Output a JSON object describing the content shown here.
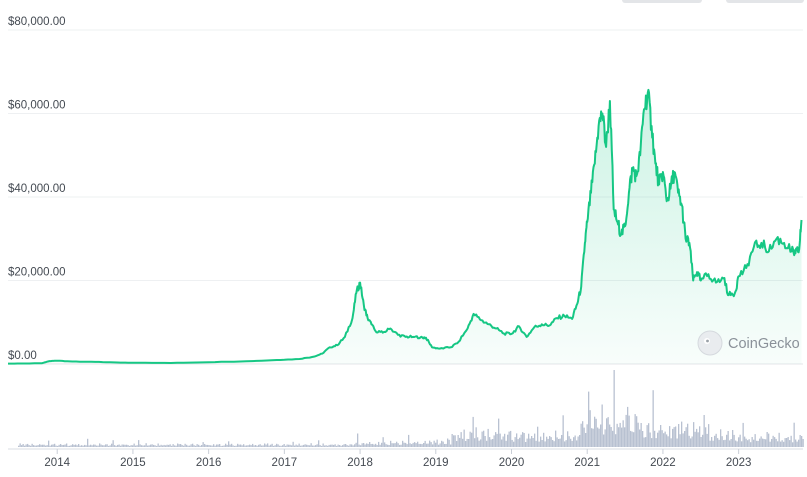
{
  "chart_data": {
    "type": "area",
    "y_tick_labels": [
      "$0.00",
      "$20,000.00",
      "$40,000.00",
      "$60,000.00",
      "$80,000.00"
    ],
    "y_ticks": [
      0,
      20000,
      40000,
      60000,
      80000
    ],
    "ylim": [
      0,
      80000
    ],
    "x_tick_labels": [
      "2014",
      "2015",
      "2016",
      "2017",
      "2018",
      "2019",
      "2020",
      "2021",
      "2022",
      "2023"
    ],
    "x_ticks": [
      2014,
      2015,
      2016,
      2017,
      2018,
      2019,
      2020,
      2021,
      2022,
      2023
    ],
    "xlim": [
      2013.35,
      2023.85
    ],
    "grid": true,
    "line_color": "#16c784",
    "volume_color": "#b8c1d1",
    "series": [
      {
        "values_type": "price",
        "x": [
          2013.35,
          2013.6,
          2013.8,
          2013.9,
          2014.0,
          2014.2,
          2014.5,
          2014.8,
          2015.0,
          2015.5,
          2016.0,
          2016.5,
          2016.9,
          2017.2,
          2017.4,
          2017.5,
          2017.6,
          2017.7,
          2017.8,
          2017.9,
          2017.95,
          2018.0,
          2018.05,
          2018.1,
          2018.15,
          2018.2,
          2018.3,
          2018.4,
          2018.5,
          2018.6,
          2018.7,
          2018.8,
          2018.87,
          2018.95,
          2019.05,
          2019.2,
          2019.3,
          2019.42,
          2019.5,
          2019.6,
          2019.7,
          2019.8,
          2019.9,
          2020.0,
          2020.1,
          2020.2,
          2020.3,
          2020.4,
          2020.5,
          2020.6,
          2020.7,
          2020.8,
          2020.87,
          2020.92,
          2020.97,
          2021.0,
          2021.05,
          2021.1,
          2021.15,
          2021.2,
          2021.25,
          2021.3,
          2021.35,
          2021.4,
          2021.45,
          2021.5,
          2021.55,
          2021.6,
          2021.65,
          2021.7,
          2021.75,
          2021.8,
          2021.85,
          2021.9,
          2021.95,
          2022.0,
          2022.05,
          2022.1,
          2022.15,
          2022.2,
          2022.25,
          2022.3,
          2022.35,
          2022.4,
          2022.45,
          2022.5,
          2022.6,
          2022.7,
          2022.8,
          2022.87,
          2022.95,
          2023.0,
          2023.1,
          2023.2,
          2023.3,
          2023.4,
          2023.5,
          2023.6,
          2023.7,
          2023.75,
          2023.8,
          2023.83
        ],
        "values": [
          100,
          120,
          200,
          700,
          800,
          600,
          500,
          350,
          300,
          250,
          430,
          650,
          950,
          1200,
          1800,
          2500,
          4000,
          4500,
          6500,
          11000,
          17000,
          19500,
          14000,
          11000,
          9500,
          8000,
          7500,
          8500,
          7000,
          6500,
          6500,
          6400,
          6300,
          4000,
          3700,
          4000,
          5300,
          8500,
          12000,
          10500,
          9500,
          8500,
          7300,
          7200,
          9000,
          6500,
          8800,
          9500,
          9200,
          11000,
          11500,
          10800,
          14500,
          18500,
          29000,
          34000,
          41000,
          48000,
          57000,
          60000,
          52000,
          63000,
          37000,
          34000,
          31000,
          33000,
          41000,
          47000,
          45000,
          50000,
          61000,
          65000,
          57000,
          48000,
          43000,
          46000,
          39000,
          42000,
          46000,
          41000,
          38000,
          30000,
          29000,
          20000,
          22000,
          20000,
          21500,
          19500,
          20500,
          16500,
          17000,
          21000,
          23000,
          28000,
          29000,
          27000,
          30000,
          29000,
          27000,
          26500,
          27500,
          34500
        ]
      }
    ]
  },
  "watermark": {
    "text": "CoinGecko"
  },
  "tabs": {
    "count": 2
  }
}
